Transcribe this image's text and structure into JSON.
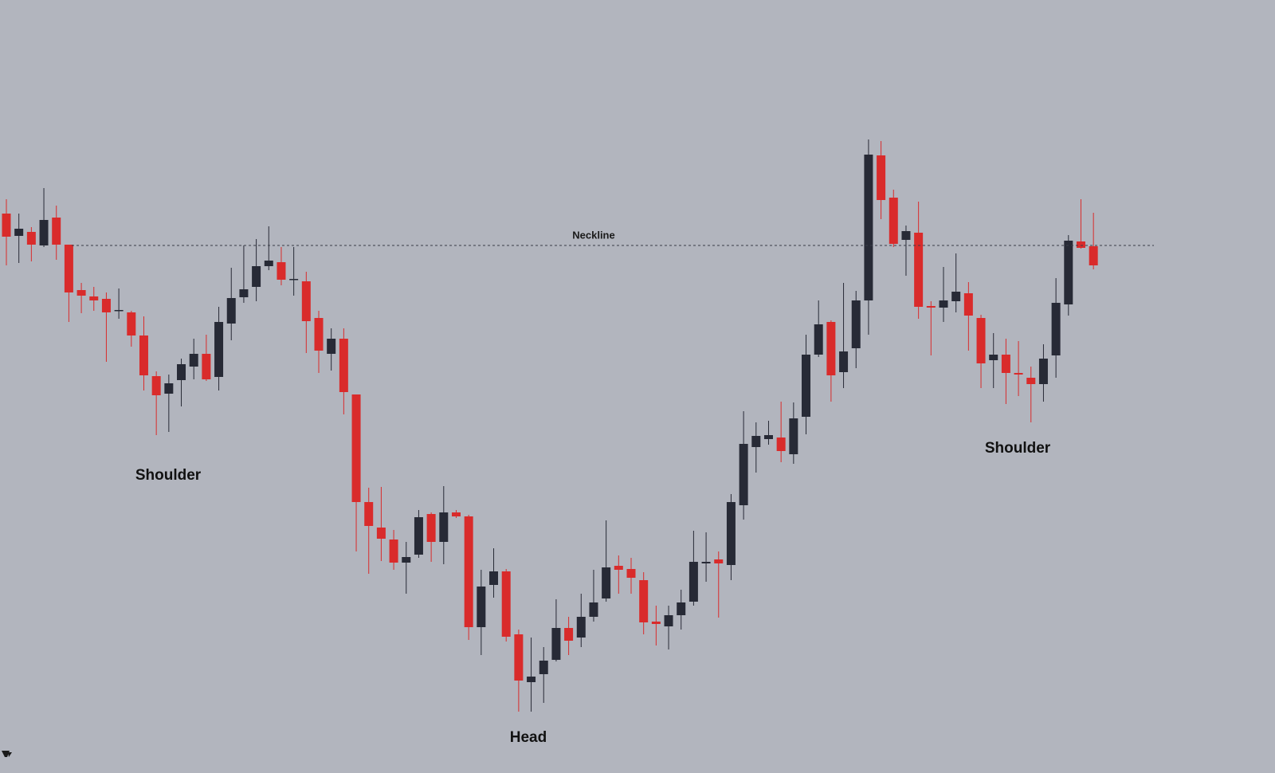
{
  "chart_data": {
    "type": "candlestick",
    "ylim": [
      0,
      970
    ],
    "up_color": "#272a36",
    "down_color": "#d92b2b",
    "open": [
      702,
      674,
      679,
      662,
      697,
      663,
      606,
      598,
      595,
      580,
      578,
      549,
      498,
      476,
      493,
      510,
      526,
      497,
      564,
      597,
      610,
      636,
      641,
      619,
      617,
      571,
      526,
      545,
      475,
      340,
      308,
      293,
      264,
      274,
      325,
      290,
      327,
      322,
      183,
      236,
      253,
      174,
      114,
      124,
      142,
      182,
      170,
      196,
      219,
      260,
      256,
      242,
      190,
      184,
      198,
      215,
      263,
      268,
      261,
      336,
      409,
      419,
      421,
      400,
      447,
      525,
      566,
      503,
      533,
      593,
      775,
      722,
      669,
      678,
      586,
      584,
      592,
      602,
      571,
      518,
      525,
      502,
      496,
      488,
      524,
      588,
      667,
      661
    ],
    "high": [
      720,
      702,
      685,
      734,
      712,
      663,
      615,
      610,
      603,
      608,
      580,
      573,
      504,
      500,
      520,
      545,
      550,
      585,
      634,
      662,
      670,
      686,
      660,
      660,
      629,
      580,
      558,
      558,
      475,
      358,
      359,
      305,
      290,
      330,
      327,
      360,
      330,
      324,
      255,
      282,
      256,
      180,
      170,
      158,
      218,
      196,
      225,
      255,
      317,
      273,
      270,
      252,
      210,
      210,
      230,
      304,
      302,
      278,
      350,
      454,
      440,
      442,
      466,
      465,
      550,
      593,
      568,
      615,
      605,
      795,
      793,
      732,
      687,
      717,
      592,
      635,
      652,
      616,
      575,
      552,
      545,
      542,
      510,
      538,
      621,
      675,
      720,
      703
    ],
    "low": [
      637,
      640,
      642,
      660,
      644,
      566,
      577,
      580,
      516,
      570,
      535,
      480,
      424,
      428,
      460,
      494,
      492,
      480,
      543,
      590,
      592,
      631,
      612,
      599,
      527,
      502,
      505,
      450,
      278,
      250,
      266,
      255,
      225,
      270,
      265,
      262,
      320,
      167,
      148,
      220,
      165,
      77,
      77,
      88,
      140,
      148,
      158,
      190,
      215,
      225,
      225,
      174,
      160,
      155,
      180,
      210,
      240,
      195,
      242,
      318,
      377,
      412,
      390,
      388,
      425,
      522,
      466,
      483,
      508,
      550,
      695,
      660,
      624,
      570,
      524,
      566,
      578,
      530,
      483,
      483,
      463,
      473,
      440,
      466,
      496,
      574,
      658,
      632
    ],
    "close": [
      673,
      683,
      663,
      694,
      663,
      603,
      599,
      593,
      578,
      581,
      549,
      499,
      474,
      489,
      513,
      526,
      494,
      566,
      596,
      607,
      636,
      643,
      619,
      620,
      567,
      530,
      545,
      478,
      340,
      310,
      294,
      264,
      271,
      321,
      290,
      327,
      322,
      183,
      234,
      253,
      171,
      116,
      121,
      141,
      182,
      166,
      196,
      214,
      258,
      255,
      245,
      189,
      187,
      198,
      214,
      265,
      265,
      263,
      340,
      413,
      423,
      424,
      404,
      445,
      525,
      563,
      499,
      529,
      593,
      776,
      719,
      664,
      680,
      585,
      584,
      593,
      604,
      574,
      514,
      525,
      502,
      500,
      488,
      520,
      590,
      668,
      659,
      637
    ],
    "neckline": {
      "value": 662,
      "label": "Neckline"
    },
    "annotations": [
      "Shoulder",
      "Head",
      "Shoulder"
    ]
  }
}
